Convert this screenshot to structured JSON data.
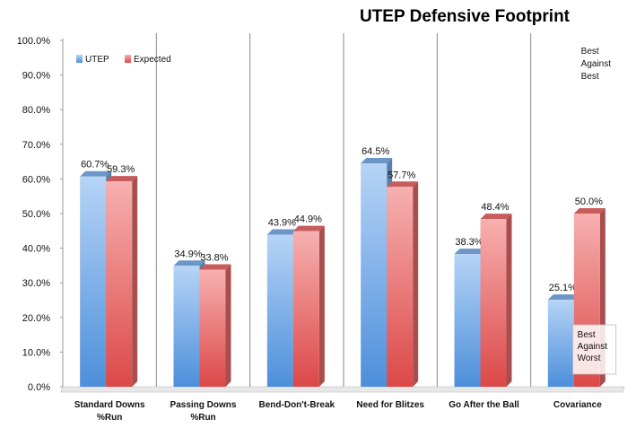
{
  "chart_data": {
    "type": "bar",
    "title": "UTEP Defensive Footprint",
    "categories": [
      [
        "Standard Downs",
        "%Run"
      ],
      [
        "Passing Downs",
        "%Run"
      ],
      [
        "Bend-Don't-Break"
      ],
      [
        "Need for Blitzes"
      ],
      [
        "Go After the Ball"
      ],
      [
        "Covariance"
      ]
    ],
    "series": [
      {
        "name": "UTEP",
        "values": [
          60.7,
          34.9,
          43.9,
          64.5,
          38.3,
          25.1
        ],
        "labels": [
          "60.7%",
          "34.9%",
          "43.9%",
          "64.5%",
          "38.3%",
          "25.1%"
        ],
        "color": "#7fb0ea"
      },
      {
        "name": "Expected",
        "values": [
          59.3,
          33.8,
          44.9,
          57.7,
          48.4,
          50.0
        ],
        "labels": [
          "59.3%",
          "33.8%",
          "44.9%",
          "57.7%",
          "48.4%",
          "50.0%"
        ],
        "color": "#ea6c6c"
      }
    ],
    "ylim": [
      0,
      100
    ],
    "yticks": [
      "0.0%",
      "10.0%",
      "20.0%",
      "30.0%",
      "40.0%",
      "50.0%",
      "60.0%",
      "70.0%",
      "80.0%",
      "90.0%",
      "100.0%"
    ],
    "legend_position": "top-left",
    "grid": "vertical category separators",
    "annotations": [
      {
        "lines": [
          "Best",
          "Against",
          "Best"
        ],
        "placement": "top of last category"
      },
      {
        "lines": [
          "Best",
          "Against",
          "Worst"
        ],
        "placement": "bottom of last category"
      }
    ]
  }
}
